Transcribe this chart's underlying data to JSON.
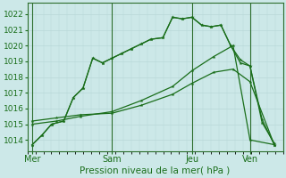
{
  "background_color": "#cce8e8",
  "grid_minor_color": "#b8d8d8",
  "line_color": "#1a6e1a",
  "spine_color": "#2d6e2d",
  "xlabel": "Pression niveau de la mer( hPa )",
  "xlabel_fontsize": 7.5,
  "ylim": [
    1013.3,
    1022.7
  ],
  "yticks": [
    1014,
    1015,
    1016,
    1017,
    1018,
    1019,
    1020,
    1021,
    1022
  ],
  "ytick_fontsize": 6.5,
  "xtick_positions": [
    0,
    33,
    66,
    90
  ],
  "xtick_labels": [
    "Mer",
    "Sam",
    "Jeu",
    "Ven"
  ],
  "xtick_fontsize": 7,
  "vline_positions": [
    0,
    33,
    66,
    90
  ],
  "xlim": [
    -2,
    103
  ],
  "line1_x": [
    0,
    4,
    8,
    13,
    17,
    21,
    25,
    29,
    33,
    37,
    41,
    45,
    49,
    54,
    58,
    62,
    66,
    70,
    74,
    78,
    82,
    86,
    90,
    95,
    100
  ],
  "line1_y": [
    1013.7,
    1014.3,
    1015.0,
    1015.2,
    1016.7,
    1017.3,
    1019.2,
    1018.9,
    1019.2,
    1019.5,
    1019.8,
    1020.1,
    1020.4,
    1020.5,
    1021.8,
    1021.7,
    1021.8,
    1021.3,
    1021.2,
    1021.3,
    1020.0,
    1018.9,
    1018.7,
    1015.1,
    1013.8
  ],
  "line2_x": [
    0,
    4,
    8,
    13,
    17,
    21,
    25,
    29,
    33,
    37,
    41,
    45,
    49,
    54,
    58,
    62,
    66,
    70,
    74,
    78,
    82,
    86,
    90,
    95,
    100
  ],
  "line2_y": [
    1013.7,
    1014.3,
    1015.0,
    1015.2,
    1016.7,
    1017.3,
    1019.2,
    1018.9,
    1019.2,
    1019.5,
    1019.8,
    1020.1,
    1020.4,
    1020.5,
    1021.8,
    1021.7,
    1021.8,
    1021.3,
    1021.2,
    1021.3,
    1020.0,
    1019.1,
    1018.7,
    1015.3,
    1013.7
  ],
  "line3_x": [
    0,
    10,
    20,
    33,
    45,
    58,
    66,
    75,
    83,
    90,
    100
  ],
  "line3_y": [
    1015.2,
    1015.4,
    1015.6,
    1015.7,
    1016.2,
    1016.9,
    1017.6,
    1018.3,
    1018.5,
    1017.7,
    1013.7
  ],
  "line4_x": [
    0,
    10,
    20,
    33,
    45,
    58,
    66,
    75,
    83,
    90,
    100
  ],
  "line4_y": [
    1015.0,
    1015.2,
    1015.5,
    1015.8,
    1016.5,
    1017.4,
    1018.4,
    1019.3,
    1020.0,
    1014.0,
    1013.7
  ]
}
